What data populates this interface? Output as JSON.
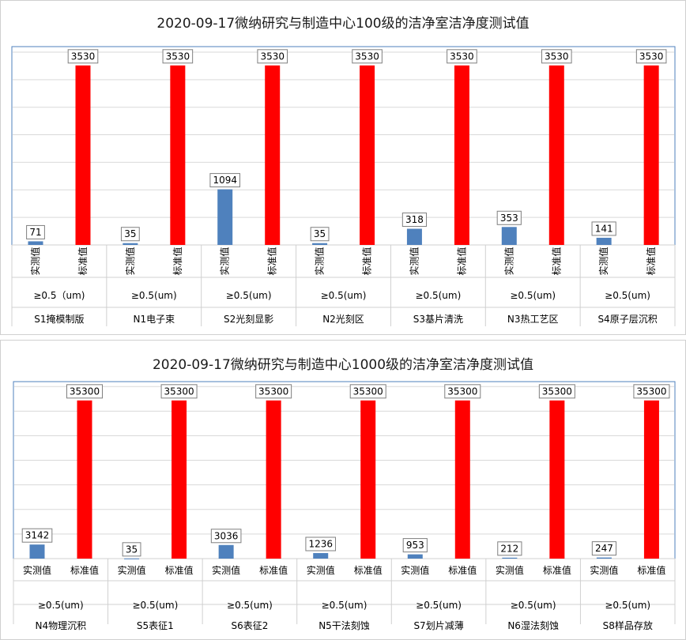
{
  "colors": {
    "measured": "#4f81bd",
    "standard": "#ff0000",
    "grid": "#d9d9d9",
    "plot_border": "#4f81bd"
  },
  "chart_data": [
    {
      "type": "bar",
      "title": "2020-09-17微纳研究与制造中心100级的洁净室洁净度测试值",
      "subgroup_label": "≥0.5（um)",
      "subgroup_labels": [
        "≥0.5（um)",
        "≥0.5(um)",
        "≥0.5(um)",
        "≥0.5(um)",
        "≥0.5(um)",
        "≥0.5(um)",
        "≥0.5(um)"
      ],
      "categories": [
        "S1掩模制版",
        "N1电子束",
        "S2光刻显影",
        "N2光刻区",
        "S3基片清洗",
        "N3热工艺区",
        "S4原子层沉积"
      ],
      "bar_labels": [
        "实测值",
        "标准值"
      ],
      "label_orientation": "vertical",
      "series": [
        {
          "name": "实测值",
          "color": "#4f81bd",
          "values": [
            71,
            35,
            1094,
            35,
            318,
            353,
            141
          ]
        },
        {
          "name": "标准值",
          "color": "#ff0000",
          "values": [
            3530,
            3530,
            3530,
            3530,
            3530,
            3530,
            3530
          ]
        }
      ],
      "ylim": [
        0,
        3900
      ],
      "grid": true,
      "gridline_count": 7,
      "xlabel": "",
      "ylabel": ""
    },
    {
      "type": "bar",
      "title": "2020-09-17微纳研究与制造中心1000级的洁净室洁净度测试值",
      "subgroup_label": "≥0.5(um)",
      "subgroup_labels": [
        "≥0.5(um)",
        "≥0.5(um)",
        "≥0.5(um)",
        "≥0.5(um)",
        "≥0.5(um)",
        "≥0.5(um)",
        "≥0.5(um)"
      ],
      "categories": [
        "N4物理沉积",
        "S5表征1",
        "S6表征2",
        "N5干法刻蚀",
        "S7划片减薄",
        "N6湿法刻蚀",
        "S8样品存放"
      ],
      "bar_labels": [
        "实测值",
        "标准值"
      ],
      "label_orientation": "horizontal",
      "series": [
        {
          "name": "实测值",
          "color": "#4f81bd",
          "values": [
            3142,
            35,
            3036,
            1236,
            953,
            212,
            247
          ]
        },
        {
          "name": "标准值",
          "color": "#ff0000",
          "values": [
            35300,
            35300,
            35300,
            35300,
            35300,
            35300,
            35300
          ]
        }
      ],
      "ylim": [
        0,
        39500
      ],
      "grid": true,
      "gridline_count": 7,
      "xlabel": "",
      "ylabel": ""
    }
  ]
}
